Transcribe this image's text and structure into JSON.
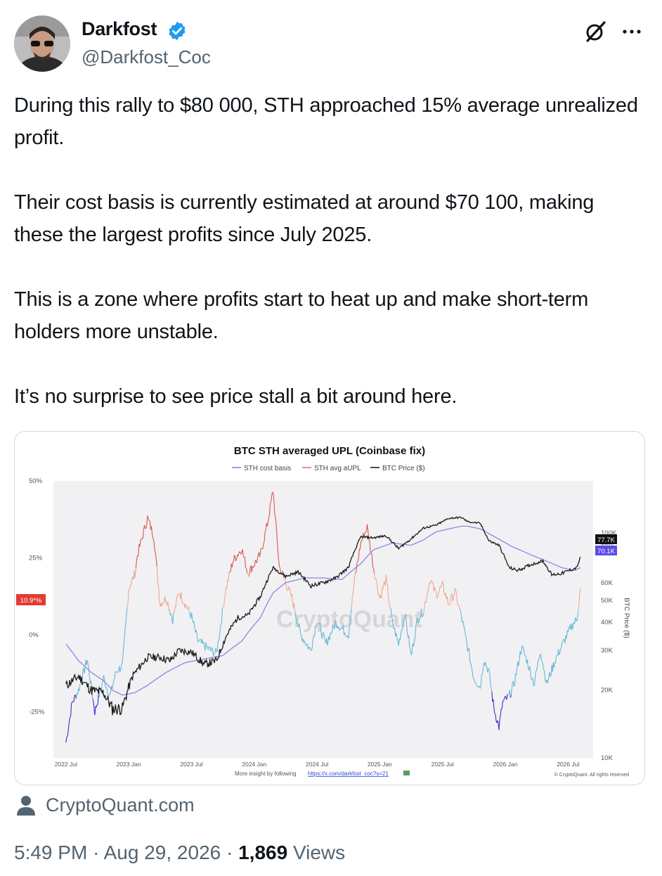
{
  "author": {
    "display_name": "Darkfost",
    "handle": "@Darkfost_Coc",
    "verified_color": "#1d9bf0"
  },
  "tweet": {
    "paragraphs": [
      "During this rally to $80 000, STH approached 15% average unrealized profit.",
      "Their cost basis is currently estimated at around $70 100, making these the largest profits since July 2025.",
      "This is a zone where profits start to heat up and make short-term holders more unstable.",
      "It’s no surprise to see price stall a bit around here."
    ]
  },
  "chart_data": {
    "type": "line",
    "title": "BTC STH averaged UPL (Coinbase fix)",
    "legend": [
      {
        "name": "STH cost basis",
        "color": "#8c86e6"
      },
      {
        "name": "STH avg aUPL",
        "color": "#e8776b"
      },
      {
        "name": "BTC Price ($)",
        "color": "#222222"
      }
    ],
    "legend_position": "top-center",
    "x_ticks": [
      "2022 Jul",
      "2023 Jan",
      "2023 Jul",
      "2024 Jan",
      "2024 Jul",
      "2025 Jan",
      "2025 Jul",
      "2026 Jan",
      "2026 Jul"
    ],
    "y_left": {
      "ticks": [
        "50%",
        "25%",
        "0%",
        "-25%"
      ],
      "range": [
        -40,
        50
      ]
    },
    "y_right": {
      "label": "BTC Price ($)",
      "scale": "log",
      "ticks": [
        "100K",
        "90K",
        "60K",
        "50K",
        "40K",
        "30K",
        "20K",
        "10K"
      ],
      "range": [
        10000,
        170000
      ]
    },
    "last_value_tags": {
      "upl": "10.9*%",
      "price": "77.7K",
      "cost_basis": "70.1K"
    },
    "watermark": "CryptoQuant",
    "footer_text": "More insight by following",
    "footer_link": "https://x.com/darkfost_coc?s=21",
    "copyright": "© CryptoQuant. All rights reserved",
    "series": {
      "price_k": [
        [
          2022.55,
          21
        ],
        [
          2022.65,
          23
        ],
        [
          2022.75,
          20
        ],
        [
          2022.85,
          19.5
        ],
        [
          2022.92,
          16.5
        ],
        [
          2023.0,
          16.6
        ],
        [
          2023.08,
          23
        ],
        [
          2023.2,
          28
        ],
        [
          2023.3,
          28
        ],
        [
          2023.38,
          27
        ],
        [
          2023.45,
          30
        ],
        [
          2023.55,
          29.5
        ],
        [
          2023.65,
          26
        ],
        [
          2023.75,
          27
        ],
        [
          2023.83,
          35
        ],
        [
          2023.92,
          42
        ],
        [
          2024.0,
          43
        ],
        [
          2024.1,
          52
        ],
        [
          2024.2,
          70
        ],
        [
          2024.3,
          64
        ],
        [
          2024.4,
          67
        ],
        [
          2024.5,
          58
        ],
        [
          2024.6,
          60
        ],
        [
          2024.7,
          63
        ],
        [
          2024.8,
          70
        ],
        [
          2024.9,
          96
        ],
        [
          2025.0,
          95
        ],
        [
          2025.1,
          97
        ],
        [
          2025.2,
          85
        ],
        [
          2025.3,
          94
        ],
        [
          2025.4,
          105
        ],
        [
          2025.5,
          108
        ],
        [
          2025.6,
          116
        ],
        [
          2025.7,
          117
        ],
        [
          2025.75,
          112
        ],
        [
          2025.85,
          110
        ],
        [
          2025.92,
          92
        ],
        [
          2026.0,
          88
        ],
        [
          2026.08,
          70
        ],
        [
          2026.15,
          68
        ],
        [
          2026.25,
          72
        ],
        [
          2026.35,
          75
        ],
        [
          2026.42,
          65
        ],
        [
          2026.5,
          66
        ],
        [
          2026.56,
          68
        ],
        [
          2026.62,
          70
        ],
        [
          2026.65,
          78
        ]
      ],
      "cost_basis_k": [
        [
          2022.55,
          32
        ],
        [
          2022.65,
          27
        ],
        [
          2022.75,
          24
        ],
        [
          2022.85,
          22
        ],
        [
          2022.92,
          20
        ],
        [
          2023.0,
          19
        ],
        [
          2023.1,
          19.5
        ],
        [
          2023.2,
          21
        ],
        [
          2023.35,
          24
        ],
        [
          2023.5,
          26.5
        ],
        [
          2023.65,
          27.5
        ],
        [
          2023.8,
          28.5
        ],
        [
          2023.95,
          33
        ],
        [
          2024.1,
          42
        ],
        [
          2024.2,
          54
        ],
        [
          2024.3,
          60
        ],
        [
          2024.45,
          63
        ],
        [
          2024.6,
          63
        ],
        [
          2024.75,
          62
        ],
        [
          2024.9,
          73
        ],
        [
          2025.0,
          84
        ],
        [
          2025.15,
          90
        ],
        [
          2025.3,
          88
        ],
        [
          2025.4,
          93
        ],
        [
          2025.5,
          101
        ],
        [
          2025.6,
          104
        ],
        [
          2025.7,
          107
        ],
        [
          2025.75,
          107
        ],
        [
          2025.85,
          104
        ],
        [
          2025.95,
          97
        ],
        [
          2026.1,
          87
        ],
        [
          2026.25,
          80
        ],
        [
          2026.4,
          74
        ],
        [
          2026.5,
          70
        ],
        [
          2026.6,
          68
        ],
        [
          2026.65,
          70.1
        ]
      ],
      "upl_pct": [
        [
          2022.55,
          -35
        ],
        [
          2022.6,
          -22
        ],
        [
          2022.65,
          -18
        ],
        [
          2022.72,
          -8
        ],
        [
          2022.78,
          -25
        ],
        [
          2022.85,
          -14
        ],
        [
          2022.9,
          -20
        ],
        [
          2022.95,
          -12
        ],
        [
          2023.0,
          -10
        ],
        [
          2023.05,
          15
        ],
        [
          2023.1,
          20
        ],
        [
          2023.12,
          26
        ],
        [
          2023.2,
          38
        ],
        [
          2023.25,
          32
        ],
        [
          2023.3,
          10
        ],
        [
          2023.35,
          12
        ],
        [
          2023.4,
          5
        ],
        [
          2023.45,
          14
        ],
        [
          2023.55,
          6
        ],
        [
          2023.6,
          -2
        ],
        [
          2023.7,
          -5
        ],
        [
          2023.75,
          -6
        ],
        [
          2023.82,
          14
        ],
        [
          2023.88,
          24
        ],
        [
          2023.95,
          28
        ],
        [
          2024.0,
          20
        ],
        [
          2024.1,
          26
        ],
        [
          2024.16,
          37
        ],
        [
          2024.2,
          47
        ],
        [
          2024.25,
          22
        ],
        [
          2024.35,
          12
        ],
        [
          2024.42,
          0
        ],
        [
          2024.5,
          -5
        ],
        [
          2024.55,
          5
        ],
        [
          2024.62,
          -3
        ],
        [
          2024.7,
          4
        ],
        [
          2024.8,
          0
        ],
        [
          2024.85,
          18
        ],
        [
          2024.9,
          30
        ],
        [
          2024.95,
          35
        ],
        [
          2025.0,
          22
        ],
        [
          2025.05,
          12
        ],
        [
          2025.1,
          18
        ],
        [
          2025.15,
          4
        ],
        [
          2025.2,
          -3
        ],
        [
          2025.25,
          7
        ],
        [
          2025.3,
          -7
        ],
        [
          2025.35,
          5
        ],
        [
          2025.4,
          8
        ],
        [
          2025.45,
          18
        ],
        [
          2025.5,
          13
        ],
        [
          2025.55,
          16
        ],
        [
          2025.6,
          10
        ],
        [
          2025.65,
          14
        ],
        [
          2025.7,
          6
        ],
        [
          2025.75,
          -4
        ],
        [
          2025.8,
          -14
        ],
        [
          2025.85,
          -17
        ],
        [
          2025.88,
          -8
        ],
        [
          2025.92,
          -12
        ],
        [
          2025.96,
          -24
        ],
        [
          2026.0,
          -30
        ],
        [
          2026.03,
          -22
        ],
        [
          2026.08,
          -20
        ],
        [
          2026.12,
          -16
        ],
        [
          2026.18,
          -4
        ],
        [
          2026.22,
          -8
        ],
        [
          2026.28,
          -16
        ],
        [
          2026.33,
          -5
        ],
        [
          2026.38,
          -16
        ],
        [
          2026.45,
          -8
        ],
        [
          2026.52,
          -2
        ],
        [
          2026.58,
          3
        ],
        [
          2026.62,
          5
        ],
        [
          2026.65,
          15
        ]
      ]
    }
  },
  "link_card": {
    "domain": "CryptoQuant.com"
  },
  "meta": {
    "time": "5:49 PM",
    "separator": "·",
    "date": "Aug 29, 2026",
    "views_count": "1,869",
    "views_label": "Views"
  }
}
